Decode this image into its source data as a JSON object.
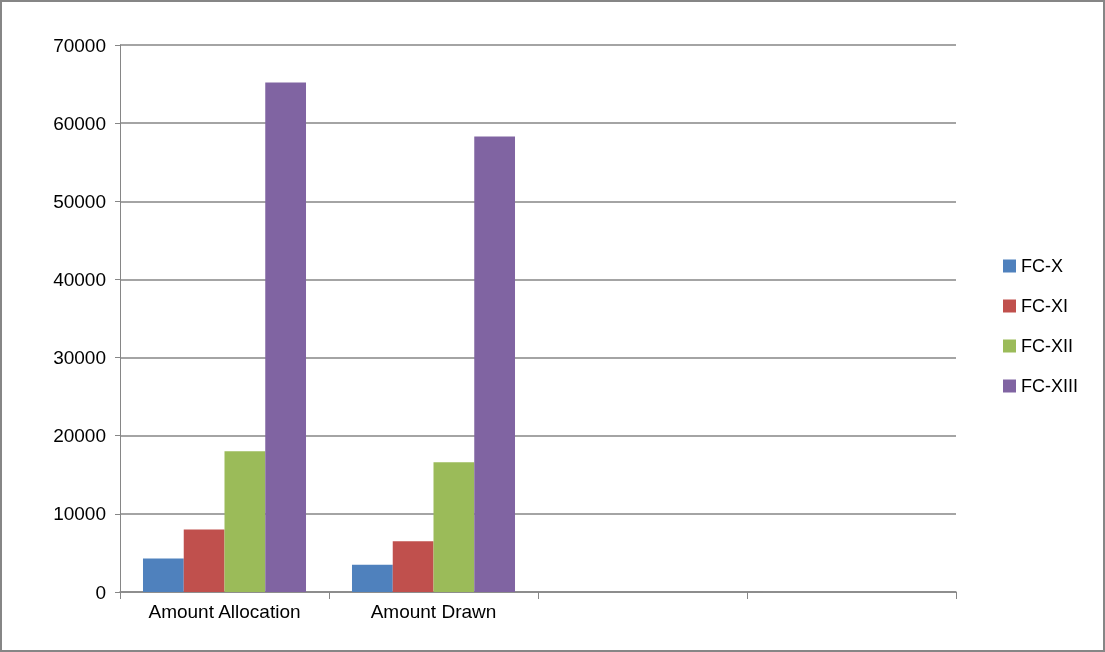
{
  "chart_data": {
    "type": "bar",
    "categories": [
      "Amount Allocation",
      "Amount Drawn",
      null,
      null
    ],
    "series": [
      {
        "name": "FC-X",
        "color": "#4f81bd",
        "values": [
          4300,
          3500,
          null,
          null
        ]
      },
      {
        "name": "FC-XI",
        "color": "#c0504d",
        "values": [
          8000,
          6500,
          null,
          null
        ]
      },
      {
        "name": "FC-XII",
        "color": "#9bbb59",
        "values": [
          18000,
          16600,
          null,
          null
        ]
      },
      {
        "name": "FC-XIII",
        "color": "#8064a2",
        "values": [
          65200,
          58300,
          null,
          null
        ]
      }
    ],
    "ylim": [
      0,
      70000
    ],
    "yticks": [
      0,
      10000,
      20000,
      30000,
      40000,
      50000,
      60000,
      70000
    ],
    "grid": "y",
    "legend": "right"
  }
}
